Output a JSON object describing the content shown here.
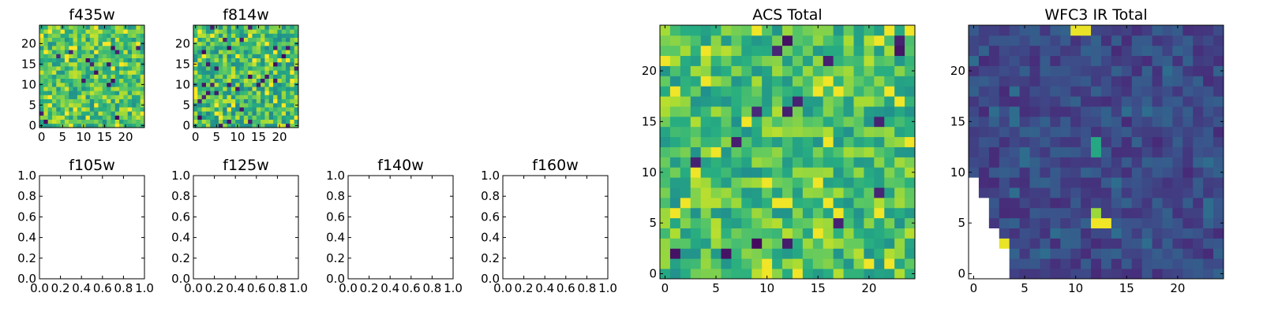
{
  "chart_data": [
    {
      "type": "heatmap",
      "title": "f435w",
      "grid_size": [
        25,
        25
      ],
      "xlim": [
        -0.5,
        24.5
      ],
      "ylim": [
        -0.5,
        24.5
      ],
      "xticks": [
        "0",
        "5",
        "10",
        "15",
        "20"
      ],
      "yticks": [
        "0",
        "5",
        "10",
        "15",
        "20"
      ],
      "colormap": "viridis",
      "texture": "mostly green-yellow noise with a few dark pixels",
      "seed": 11,
      "mean": 0.72,
      "spread": 0.22,
      "dark_prob": 0.03
    },
    {
      "type": "heatmap",
      "title": "f814w",
      "grid_size": [
        25,
        25
      ],
      "xlim": [
        -0.5,
        24.5
      ],
      "ylim": [
        -0.5,
        24.5
      ],
      "xticks": [
        "0",
        "5",
        "10",
        "15",
        "20"
      ],
      "yticks": [
        "0",
        "5",
        "10",
        "15",
        "20"
      ],
      "colormap": "viridis",
      "texture": "green-yellow noise with several dark pixels",
      "seed": 23,
      "mean": 0.7,
      "spread": 0.24,
      "dark_prob": 0.05
    },
    {
      "type": "empty",
      "title": "f105w",
      "xlim": [
        0,
        1
      ],
      "ylim": [
        0,
        1
      ],
      "xticks": [
        "0.0",
        "0.2",
        "0.4",
        "0.6",
        "0.8",
        "1.0"
      ],
      "yticks": [
        "0.0",
        "0.2",
        "0.4",
        "0.6",
        "0.8",
        "1.0"
      ]
    },
    {
      "type": "empty",
      "title": "f125w",
      "xlim": [
        0,
        1
      ],
      "ylim": [
        0,
        1
      ],
      "xticks": [
        "0.0",
        "0.2",
        "0.4",
        "0.6",
        "0.8",
        "1.0"
      ],
      "yticks": [
        "0.0",
        "0.2",
        "0.4",
        "0.6",
        "0.8",
        "1.0"
      ]
    },
    {
      "type": "empty",
      "title": "f140w",
      "xlim": [
        0,
        1
      ],
      "ylim": [
        0,
        1
      ],
      "xticks": [
        "0.0",
        "0.2",
        "0.4",
        "0.6",
        "0.8",
        "1.0"
      ],
      "yticks": [
        "0.0",
        "0.2",
        "0.4",
        "0.6",
        "0.8",
        "1.0"
      ]
    },
    {
      "type": "empty",
      "title": "f160w",
      "xlim": [
        0,
        1
      ],
      "ylim": [
        0,
        1
      ],
      "xticks": [
        "0.0",
        "0.2",
        "0.4",
        "0.6",
        "0.8",
        "1.0"
      ],
      "yticks": [
        "0.0",
        "0.2",
        "0.4",
        "0.6",
        "0.8",
        "1.0"
      ]
    },
    {
      "type": "heatmap",
      "title": "ACS Total",
      "grid_size": [
        25,
        25
      ],
      "xlim": [
        -0.5,
        24.5
      ],
      "ylim": [
        -0.5,
        24.5
      ],
      "xticks": [
        "0",
        "5",
        "10",
        "15",
        "20"
      ],
      "yticks": [
        "0",
        "5",
        "10",
        "15",
        "20"
      ],
      "colormap": "viridis",
      "texture": "green-yellow noise with scattered dark pixels",
      "seed": 37,
      "mean": 0.7,
      "spread": 0.2,
      "dark_prob": 0.035
    },
    {
      "type": "heatmap",
      "title": "WFC3 IR Total",
      "grid_size": [
        25,
        25
      ],
      "xlim": [
        -0.5,
        24.5
      ],
      "ylim": [
        -0.5,
        24.5
      ],
      "xticks": [
        "0",
        "5",
        "10",
        "15",
        "20"
      ],
      "yticks": [
        "0",
        "5",
        "10",
        "15",
        "20"
      ],
      "colormap": "viridis",
      "texture": "mostly dark blue-purple with a few bright pixels; blank (masked) region at lower-left",
      "seed": 53,
      "mean": 0.22,
      "spread": 0.1,
      "dark_prob": 0.0,
      "bright_cells": [
        {
          "x": 10,
          "y": 24,
          "value": 0.97
        },
        {
          "x": 11,
          "y": 24,
          "value": 0.97
        },
        {
          "x": 12,
          "y": 5,
          "value": 0.98
        },
        {
          "x": 13,
          "y": 5,
          "value": 0.98
        },
        {
          "x": 12,
          "y": 6,
          "value": 0.85
        },
        {
          "x": 3,
          "y": 3,
          "value": 0.97
        },
        {
          "x": 12,
          "y": 12,
          "value": 0.6
        },
        {
          "x": 12,
          "y": 13,
          "value": 0.6
        }
      ],
      "masked_region": "lower-left triangle (x < ~4, y < ~10)"
    }
  ]
}
